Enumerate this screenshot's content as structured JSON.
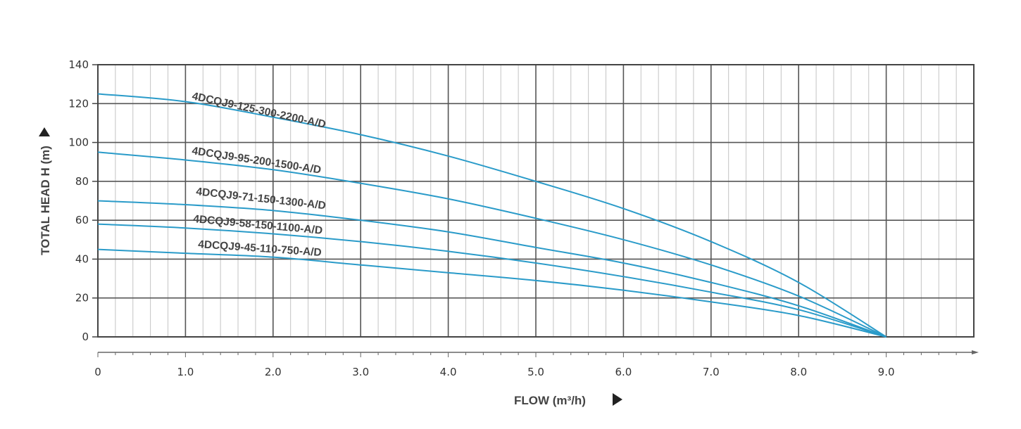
{
  "chart_data": {
    "type": "line",
    "xlabel": "FLOW (m³/h)",
    "ylabel": "TOTAL HEAD H (m)",
    "xlim": [
      0,
      10
    ],
    "ylim": [
      0,
      140
    ],
    "x_ticks": [
      "0",
      "1.0",
      "2.0",
      "3.0",
      "4.0",
      "5.0",
      "6.0",
      "7.0",
      "8.0",
      "9.0"
    ],
    "y_ticks": [
      "0",
      "20",
      "40",
      "60",
      "80",
      "100",
      "120",
      "140"
    ],
    "grid": true,
    "line_color": "#2a9bc9",
    "series": [
      {
        "name": "4DCQJ9-125-300-2200-A/D",
        "x": [
          0,
          1,
          2,
          3,
          4,
          5,
          6,
          7,
          8,
          9
        ],
        "y": [
          125,
          121,
          113,
          104,
          93,
          80,
          66,
          49,
          28,
          0
        ]
      },
      {
        "name": "4DCQJ9-95-200-1500-A/D",
        "x": [
          0,
          1,
          2,
          3,
          4,
          5,
          6,
          7,
          8,
          9
        ],
        "y": [
          95,
          91,
          86,
          79,
          71,
          61,
          50,
          37,
          21,
          0
        ]
      },
      {
        "name": "4DCQJ9-71-150-1300-A/D",
        "x": [
          0,
          1,
          2,
          3,
          4,
          5,
          6,
          7,
          8,
          9
        ],
        "y": [
          70,
          68,
          65,
          60,
          54,
          46,
          38,
          28,
          16,
          0
        ]
      },
      {
        "name": "4DCQJ9-58-150-1100-A/D",
        "x": [
          0,
          1,
          2,
          3,
          4,
          5,
          6,
          7,
          8,
          9
        ],
        "y": [
          58,
          56,
          53,
          49,
          44,
          38,
          31,
          23,
          14,
          0
        ]
      },
      {
        "name": "4DCQJ9-45-110-750-A/D",
        "x": [
          0,
          1,
          2,
          3,
          4,
          5,
          6,
          7,
          8,
          9
        ],
        "y": [
          45,
          43,
          41,
          37,
          33,
          29,
          24,
          18,
          11,
          0
        ]
      }
    ]
  }
}
